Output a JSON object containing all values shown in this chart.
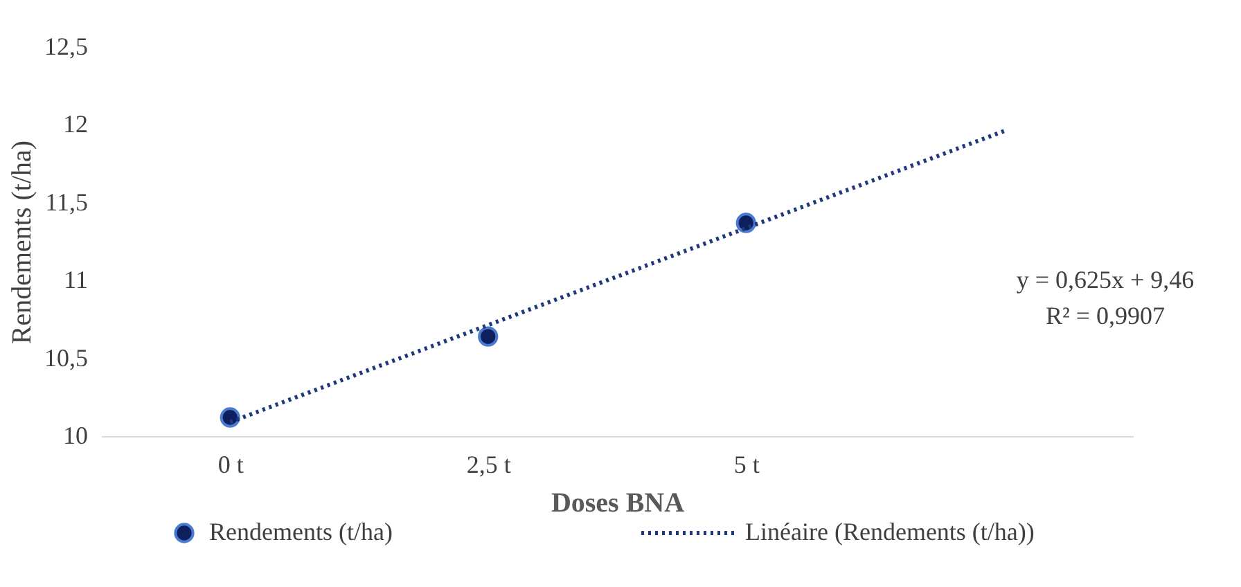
{
  "chart_data": {
    "type": "scatter",
    "xlabel": "Doses BNA",
    "ylabel": "Rendements (t/ha)",
    "x": [
      0,
      2.5,
      5
    ],
    "series": [
      {
        "name": "Rendements (t/ha)",
        "color": "#0d1f5c",
        "marker": "circle",
        "values": [
          10.12,
          10.64,
          11.37
        ]
      },
      {
        "name": "Linéaire (Rendements (t/ha))",
        "color": "#1f3a7a",
        "type": "line",
        "line_style": "dotted",
        "marker": "none",
        "x": [
          0,
          7.5
        ],
        "values": [
          10.09,
          11.96
        ]
      }
    ],
    "xlim": [
      -1.25,
      8.75
    ],
    "xticks": [
      {
        "value": 0,
        "label": "0 t"
      },
      {
        "value": 2.5,
        "label": "2,5 t"
      },
      {
        "value": 5,
        "label": "5 t"
      }
    ],
    "ylim": [
      10,
      12.5
    ],
    "yticks": [
      {
        "value": 10,
        "label": "10"
      },
      {
        "value": 10.5,
        "label": "10,5"
      },
      {
        "value": 11,
        "label": "11"
      },
      {
        "value": 11.5,
        "label": "11,5"
      },
      {
        "value": 12,
        "label": "12"
      },
      {
        "value": 12.5,
        "label": "12,5"
      }
    ],
    "annotations": [
      "y = 0,625x + 9,46",
      "R² = 0,9907"
    ],
    "legend": "bottom"
  }
}
